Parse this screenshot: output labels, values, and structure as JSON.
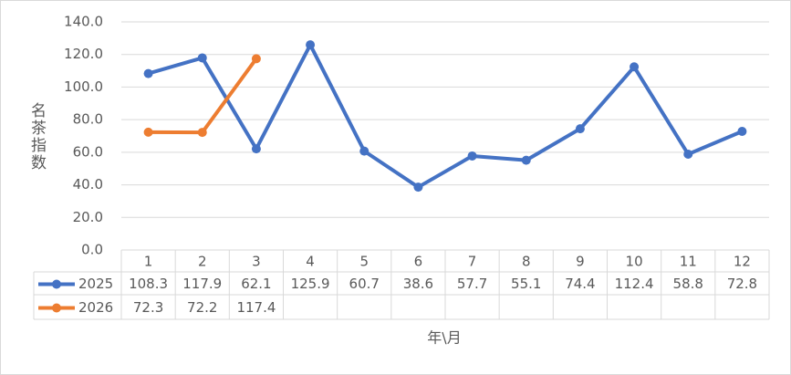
{
  "chart_data": {
    "type": "line",
    "y_label": "名茶指数",
    "x_label": "年\\月",
    "categories": [
      "1",
      "2",
      "3",
      "4",
      "5",
      "6",
      "7",
      "8",
      "9",
      "10",
      "11",
      "12"
    ],
    "series": [
      {
        "name": "2025",
        "color": "#4472c4",
        "values": [
          108.3,
          117.9,
          62.1,
          125.9,
          60.7,
          38.6,
          57.7,
          55.1,
          74.4,
          112.4,
          58.8,
          72.8
        ]
      },
      {
        "name": "2026",
        "color": "#ed7d31",
        "values": [
          72.3,
          72.2,
          117.4,
          null,
          null,
          null,
          null,
          null,
          null,
          null,
          null,
          null
        ]
      }
    ],
    "ylim": [
      0,
      140
    ],
    "yticks": [
      {
        "value": 0,
        "label": "0.0"
      },
      {
        "value": 20,
        "label": "20.0"
      },
      {
        "value": 40,
        "label": "40.0"
      },
      {
        "value": 60,
        "label": "60.0"
      },
      {
        "value": 80,
        "label": "80.0"
      },
      {
        "value": 100,
        "label": "100.0"
      },
      {
        "value": 120,
        "label": "120.0"
      },
      {
        "value": 140,
        "label": "140.0"
      }
    ],
    "grid": true,
    "data_table": true
  }
}
